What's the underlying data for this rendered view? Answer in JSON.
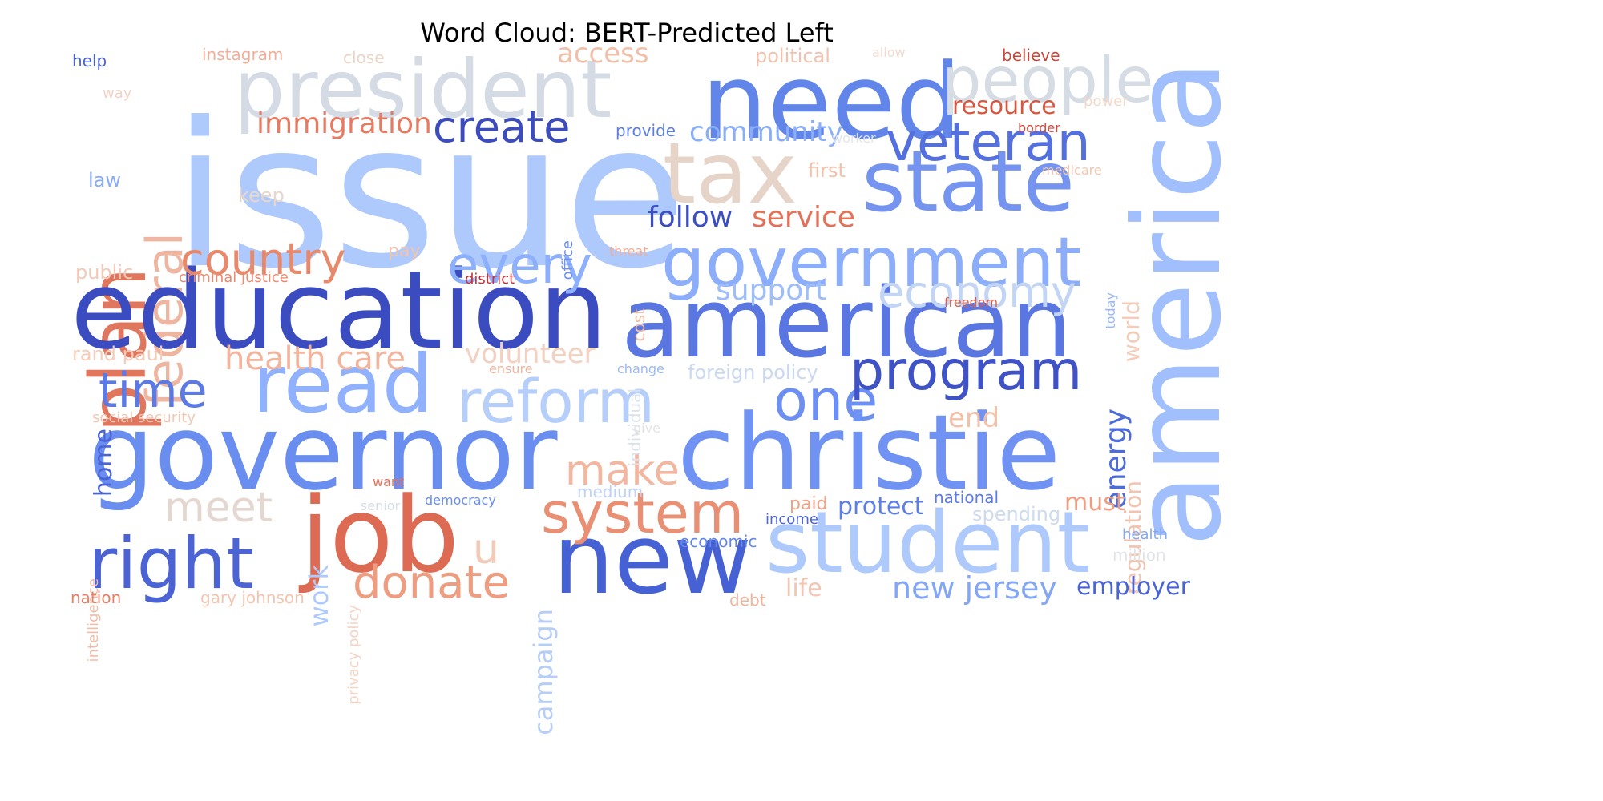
{
  "title": "Word Cloud: BERT-Predicted Left",
  "words": [
    {
      "text": "issue",
      "color": "#aec9fb",
      "vertical": false
    },
    {
      "text": "president",
      "color": "#d5dbe5",
      "vertical": false
    },
    {
      "text": "need",
      "color": "#6285ea",
      "vertical": false
    },
    {
      "text": "people",
      "color": "#d6dce4",
      "vertical": false
    },
    {
      "text": "america",
      "color": "#a0bffc",
      "vertical": true
    },
    {
      "text": "plan",
      "color": "#e1765e",
      "vertical": true
    },
    {
      "text": "federal",
      "color": "#eeb6a0",
      "vertical": true
    },
    {
      "text": "tax",
      "color": "#e6d4c9",
      "vertical": false
    },
    {
      "text": "state",
      "color": "#7494ef",
      "vertical": false
    },
    {
      "text": "veteran",
      "color": "#5470de",
      "vertical": false
    },
    {
      "text": "create",
      "color": "#3d4cbc",
      "vertical": false
    },
    {
      "text": "immigration",
      "color": "#e77b62",
      "vertical": false
    },
    {
      "text": "access",
      "color": "#f1c0aa",
      "vertical": false
    },
    {
      "text": "resource",
      "color": "#d6573f",
      "vertical": false
    },
    {
      "text": "community",
      "color": "#8aaff7",
      "vertical": false
    },
    {
      "text": "education",
      "color": "#3b4cc0",
      "vertical": false
    },
    {
      "text": "american",
      "color": "#5976e1",
      "vertical": false
    },
    {
      "text": "government",
      "color": "#8badfa",
      "vertical": false
    },
    {
      "text": "economy",
      "color": "#c3d5f4",
      "vertical": false
    },
    {
      "text": "every",
      "color": "#8db0fe",
      "vertical": false
    },
    {
      "text": "country",
      "color": "#e9896c",
      "vertical": false
    },
    {
      "text": "follow",
      "color": "#3c4ec2",
      "vertical": false
    },
    {
      "text": "service",
      "color": "#e57058",
      "vertical": false
    },
    {
      "text": "support",
      "color": "#9ebefa",
      "vertical": false
    },
    {
      "text": "read",
      "color": "#90b2fe",
      "vertical": false
    },
    {
      "text": "reform",
      "color": "#b6cefa",
      "vertical": false
    },
    {
      "text": "one",
      "color": "#6c8ff1",
      "vertical": false
    },
    {
      "text": "program",
      "color": "#3f53c6",
      "vertical": false
    },
    {
      "text": "time",
      "color": "#5b7ae5",
      "vertical": false
    },
    {
      "text": "health care",
      "color": "#f2b49c",
      "vertical": false
    },
    {
      "text": "volunteer",
      "color": "#f3d0c0",
      "vertical": false
    },
    {
      "text": "governor",
      "color": "#6a8ef0",
      "vertical": false
    },
    {
      "text": "christie",
      "color": "#6f92f3",
      "vertical": false
    },
    {
      "text": "job",
      "color": "#dd6a52",
      "vertical": false
    },
    {
      "text": "new",
      "color": "#4561d3",
      "vertical": false
    },
    {
      "text": "student",
      "color": "#aecafc",
      "vertical": false
    },
    {
      "text": "right",
      "color": "#4b63d3",
      "vertical": false
    },
    {
      "text": "system",
      "color": "#e98f73",
      "vertical": false
    },
    {
      "text": "make",
      "color": "#f2b7a0",
      "vertical": false
    },
    {
      "text": "meet",
      "color": "#e3d7d0",
      "vertical": false
    },
    {
      "text": "donate",
      "color": "#ee9d80",
      "vertical": false
    },
    {
      "text": "u",
      "color": "#f0cbb9",
      "vertical": false
    },
    {
      "text": "energy",
      "color": "#4d6cdc",
      "vertical": true
    },
    {
      "text": "regulation",
      "color": "#f1c4af",
      "vertical": true
    },
    {
      "text": "world",
      "color": "#f3cdb9",
      "vertical": true
    },
    {
      "text": "must",
      "color": "#ee9d80",
      "vertical": false
    },
    {
      "text": "end",
      "color": "#f3c0a8",
      "vertical": false
    },
    {
      "text": "protect",
      "color": "#5c7ee6",
      "vertical": false
    },
    {
      "text": "new jersey",
      "color": "#83a6f5",
      "vertical": false
    },
    {
      "text": "employer",
      "color": "#4a64d5",
      "vertical": false
    },
    {
      "text": "life",
      "color": "#f2c6b2",
      "vertical": false
    },
    {
      "text": "help",
      "color": "#4a64d5",
      "vertical": false
    },
    {
      "text": "instagram",
      "color": "#f2b09a",
      "vertical": false
    },
    {
      "text": "close",
      "color": "#ebd4c8",
      "vertical": false
    },
    {
      "text": "political",
      "color": "#f2c2ae",
      "vertical": false
    },
    {
      "text": "allow",
      "color": "#f0dcd2",
      "vertical": false
    },
    {
      "text": "believe",
      "color": "#c84738",
      "vertical": false
    },
    {
      "text": "way",
      "color": "#f0d3c6",
      "vertical": false
    },
    {
      "text": "power",
      "color": "#f4d9ca",
      "vertical": false
    },
    {
      "text": "provide",
      "color": "#5d7fe5",
      "vertical": false
    },
    {
      "text": "border",
      "color": "#d04b3c",
      "vertical": false
    },
    {
      "text": "worker",
      "color": "#e2e5ea",
      "vertical": false
    },
    {
      "text": "first",
      "color": "#f3c0a8",
      "vertical": false
    },
    {
      "text": "medicare",
      "color": "#f3c6b0",
      "vertical": false
    },
    {
      "text": "law",
      "color": "#8aadf6",
      "vertical": false
    },
    {
      "text": "keep",
      "color": "#e8d6cc",
      "vertical": false
    },
    {
      "text": "office",
      "color": "#6e90ee",
      "vertical": true
    },
    {
      "text": "pay",
      "color": "#f2c4ae",
      "vertical": false
    },
    {
      "text": "threat",
      "color": "#f0ae96",
      "vertical": false
    },
    {
      "text": "public",
      "color": "#f1c9b6",
      "vertical": false
    },
    {
      "text": "criminal justice",
      "color": "#e88b6f",
      "vertical": false
    },
    {
      "text": "district",
      "color": "#c53334",
      "vertical": false
    },
    {
      "text": "individual",
      "color": "#dde3ec",
      "vertical": true
    },
    {
      "text": "cost",
      "color": "#f0bca5",
      "vertical": true
    },
    {
      "text": "today",
      "color": "#9ab8f6",
      "vertical": true
    },
    {
      "text": "freedom",
      "color": "#dc5f4a",
      "vertical": false
    },
    {
      "text": "rand paul",
      "color": "#f4cdb9",
      "vertical": false
    },
    {
      "text": "ensure",
      "color": "#f0b39c",
      "vertical": false
    },
    {
      "text": "change",
      "color": "#9bb9f6",
      "vertical": false
    },
    {
      "text": "foreign policy",
      "color": "#cad8f0",
      "vertical": false
    },
    {
      "text": "home",
      "color": "#4a64d5",
      "vertical": true
    },
    {
      "text": "social security",
      "color": "#f3c7b2",
      "vertical": false
    },
    {
      "text": "give",
      "color": "#e4e4e4",
      "vertical": false
    },
    {
      "text": "intelligence",
      "color": "#f2bda7",
      "vertical": true
    },
    {
      "text": "work",
      "color": "#aecafc",
      "vertical": true
    },
    {
      "text": "privacy policy",
      "color": "#f3d4c5",
      "vertical": true
    },
    {
      "text": "campaign",
      "color": "#b6cdf6",
      "vertical": true
    },
    {
      "text": "want",
      "color": "#e57058",
      "vertical": false
    },
    {
      "text": "medium",
      "color": "#c0d3f5",
      "vertical": false
    },
    {
      "text": "senior",
      "color": "#d8dee6",
      "vertical": false
    },
    {
      "text": "democracy",
      "color": "#6b8ff0",
      "vertical": false
    },
    {
      "text": "paid",
      "color": "#eea286",
      "vertical": false
    },
    {
      "text": "national",
      "color": "#5b7be5",
      "vertical": false
    },
    {
      "text": "spending",
      "color": "#cedaed",
      "vertical": false
    },
    {
      "text": "income",
      "color": "#4a64d5",
      "vertical": false
    },
    {
      "text": "economic",
      "color": "#6486ea",
      "vertical": false
    },
    {
      "text": "health",
      "color": "#82a6f8",
      "vertical": false
    },
    {
      "text": "million",
      "color": "#e2e4e8",
      "vertical": false
    },
    {
      "text": "nation",
      "color": "#e88066",
      "vertical": false
    },
    {
      "text": "gary johnson",
      "color": "#f3c4ae",
      "vertical": false
    },
    {
      "text": "debt",
      "color": "#f0b49c",
      "vertical": false
    }
  ]
}
